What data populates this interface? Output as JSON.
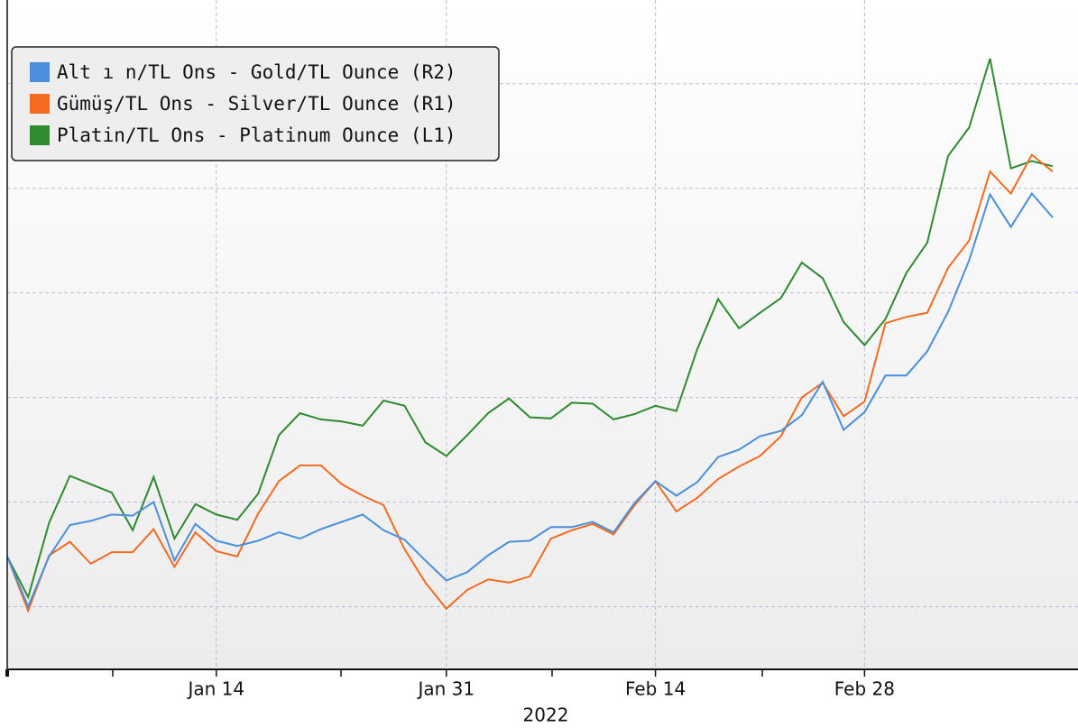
{
  "chart_data": {
    "type": "line",
    "categories": [
      null,
      null,
      null,
      null,
      null,
      null,
      null,
      null,
      null,
      null,
      "Jan 14",
      null,
      null,
      null,
      null,
      null,
      null,
      null,
      null,
      null,
      null,
      "Jan 31",
      null,
      null,
      null,
      null,
      null,
      null,
      null,
      null,
      null,
      "Feb 14",
      null,
      null,
      null,
      null,
      null,
      null,
      null,
      null,
      null,
      "Feb 28",
      null,
      null,
      null,
      null,
      null,
      null,
      null,
      null,
      null
    ],
    "x_label": "2022",
    "ylim": [
      -0.6,
      5.8
    ],
    "yticks": [
      0,
      1,
      2,
      3,
      4,
      5
    ],
    "grid": true,
    "legend": "upper left",
    "series": [
      {
        "name": "Alt ı n/TL Ons - Gold/TL Ounce (R2)",
        "color": "#4a8fdc",
        "values": [
          0.48,
          0.0,
          0.48,
          0.78,
          0.82,
          0.88,
          0.87,
          1.0,
          0.44,
          0.79,
          0.63,
          0.58,
          0.63,
          0.71,
          0.65,
          0.74,
          0.81,
          0.88,
          0.73,
          0.64,
          0.44,
          0.25,
          0.33,
          0.49,
          0.62,
          0.63,
          0.76,
          0.76,
          0.81,
          0.71,
          0.99,
          1.2,
          1.06,
          1.19,
          1.43,
          1.5,
          1.63,
          1.68,
          1.83,
          2.15,
          1.69,
          1.86,
          2.21,
          2.21,
          2.44,
          2.82,
          3.31,
          3.94,
          3.63,
          3.95,
          3.72
        ]
      },
      {
        "name": "Gümüş/TL Ons - Silver/TL Ounce (R1)",
        "color": "#f26b21",
        "values": [
          0.48,
          -0.04,
          0.49,
          0.62,
          0.41,
          0.52,
          0.52,
          0.74,
          0.38,
          0.71,
          0.53,
          0.48,
          0.89,
          1.2,
          1.35,
          1.35,
          1.17,
          1.06,
          0.97,
          0.55,
          0.23,
          -0.02,
          0.16,
          0.26,
          0.23,
          0.29,
          0.65,
          0.73,
          0.79,
          0.69,
          0.97,
          1.2,
          0.91,
          1.04,
          1.22,
          1.34,
          1.44,
          1.63,
          2.0,
          2.14,
          1.82,
          1.96,
          2.71,
          2.77,
          2.81,
          3.24,
          3.5,
          4.16,
          3.95,
          4.32,
          4.16
        ]
      },
      {
        "name": "Platin/TL Ons - Platinum Ounce (L1)",
        "color": "#2e8b30",
        "values": [
          0.48,
          0.09,
          0.8,
          1.25,
          1.17,
          1.09,
          0.73,
          1.24,
          0.65,
          0.98,
          0.88,
          0.83,
          1.08,
          1.64,
          1.85,
          1.79,
          1.77,
          1.73,
          1.97,
          1.92,
          1.57,
          1.44,
          1.64,
          1.85,
          1.99,
          1.81,
          1.8,
          1.95,
          1.94,
          1.79,
          1.84,
          1.92,
          1.87,
          2.46,
          2.94,
          2.66,
          2.81,
          2.95,
          3.29,
          3.14,
          2.72,
          2.5,
          2.75,
          3.19,
          3.48,
          4.31,
          4.58,
          5.24,
          4.19,
          4.26,
          4.21
        ]
      }
    ]
  }
}
